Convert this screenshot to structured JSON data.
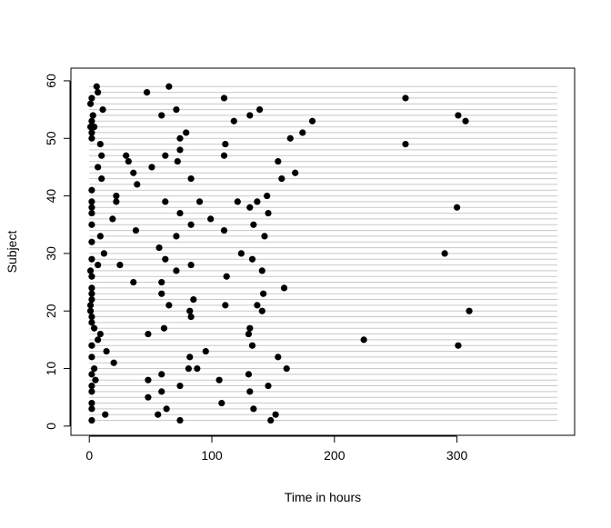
{
  "chart_data": {
    "type": "scatter",
    "title": "",
    "xlabel": "Time in hours",
    "ylabel": "Subject",
    "xlim": [
      -15,
      396
    ],
    "ylim": [
      -1.6,
      62.2
    ],
    "xticks": [
      0,
      100,
      200,
      300
    ],
    "yticks": [
      0,
      10,
      20,
      30,
      40,
      50,
      60
    ],
    "grid_lines": {
      "subjects_from": 1,
      "subjects_to": 59,
      "extent_hours": [
        0,
        382
      ],
      "color": "#c8c8c8"
    },
    "point_color": "#000000",
    "points": [
      [
        6,
        59
      ],
      [
        65,
        59
      ],
      [
        7,
        58
      ],
      [
        47,
        58
      ],
      [
        2,
        57
      ],
      [
        110,
        57
      ],
      [
        258,
        57
      ],
      [
        1,
        56
      ],
      [
        11,
        55
      ],
      [
        71,
        55
      ],
      [
        139,
        55
      ],
      [
        3,
        54
      ],
      [
        59,
        54
      ],
      [
        131,
        54
      ],
      [
        301,
        54
      ],
      [
        2,
        53
      ],
      [
        118,
        53
      ],
      [
        182,
        53
      ],
      [
        307,
        53
      ],
      [
        1,
        52
      ],
      [
        4,
        52
      ],
      [
        2,
        51
      ],
      [
        79,
        51
      ],
      [
        174,
        51
      ],
      [
        2,
        50
      ],
      [
        74,
        50
      ],
      [
        164,
        50
      ],
      [
        9,
        49
      ],
      [
        111,
        49
      ],
      [
        258,
        49
      ],
      [
        74,
        48
      ],
      [
        10,
        47
      ],
      [
        30,
        47
      ],
      [
        62,
        47
      ],
      [
        110,
        47
      ],
      [
        32,
        46
      ],
      [
        72,
        46
      ],
      [
        154,
        46
      ],
      [
        7,
        45
      ],
      [
        51,
        45
      ],
      [
        36,
        44
      ],
      [
        168,
        44
      ],
      [
        10,
        43
      ],
      [
        83,
        43
      ],
      [
        157,
        43
      ],
      [
        39,
        42
      ],
      [
        2,
        41
      ],
      [
        22,
        40
      ],
      [
        145,
        40
      ],
      [
        2,
        39
      ],
      [
        22,
        39
      ],
      [
        62,
        39
      ],
      [
        90,
        39
      ],
      [
        121,
        39
      ],
      [
        137,
        39
      ],
      [
        2,
        38
      ],
      [
        131,
        38
      ],
      [
        300,
        38
      ],
      [
        2,
        37
      ],
      [
        74,
        37
      ],
      [
        146,
        37
      ],
      [
        19,
        36
      ],
      [
        99,
        36
      ],
      [
        2,
        35
      ],
      [
        83,
        35
      ],
      [
        134,
        35
      ],
      [
        38,
        34
      ],
      [
        110,
        34
      ],
      [
        9,
        33
      ],
      [
        71,
        33
      ],
      [
        143,
        33
      ],
      [
        2,
        32
      ],
      [
        57,
        31
      ],
      [
        12,
        30
      ],
      [
        124,
        30
      ],
      [
        290,
        30
      ],
      [
        2,
        29
      ],
      [
        62,
        29
      ],
      [
        133,
        29
      ],
      [
        7,
        28
      ],
      [
        25,
        28
      ],
      [
        83,
        28
      ],
      [
        1,
        27
      ],
      [
        71,
        27
      ],
      [
        141,
        27
      ],
      [
        2,
        26
      ],
      [
        112,
        26
      ],
      [
        36,
        25
      ],
      [
        59,
        25
      ],
      [
        2,
        24
      ],
      [
        159,
        24
      ],
      [
        2,
        23
      ],
      [
        59,
        23
      ],
      [
        142,
        23
      ],
      [
        2,
        22
      ],
      [
        85,
        22
      ],
      [
        1,
        21
      ],
      [
        65,
        21
      ],
      [
        111,
        21
      ],
      [
        137,
        21
      ],
      [
        1,
        20
      ],
      [
        82,
        20
      ],
      [
        141,
        20
      ],
      [
        310,
        20
      ],
      [
        2,
        19
      ],
      [
        83,
        19
      ],
      [
        2,
        18
      ],
      [
        4,
        17
      ],
      [
        61,
        17
      ],
      [
        131,
        17
      ],
      [
        9,
        16
      ],
      [
        48,
        16
      ],
      [
        130,
        16
      ],
      [
        7,
        15
      ],
      [
        224,
        15
      ],
      [
        2,
        14
      ],
      [
        133,
        14
      ],
      [
        301,
        14
      ],
      [
        14,
        13
      ],
      [
        95,
        13
      ],
      [
        2,
        12
      ],
      [
        82,
        12
      ],
      [
        154,
        12
      ],
      [
        20,
        11
      ],
      [
        4,
        10
      ],
      [
        81,
        10
      ],
      [
        88,
        10
      ],
      [
        161,
        10
      ],
      [
        2,
        9
      ],
      [
        59,
        9
      ],
      [
        130,
        9
      ],
      [
        5,
        8
      ],
      [
        48,
        8
      ],
      [
        106,
        8
      ],
      [
        2,
        7
      ],
      [
        74,
        7
      ],
      [
        146,
        7
      ],
      [
        2,
        6
      ],
      [
        59,
        6
      ],
      [
        131,
        6
      ],
      [
        48,
        5
      ],
      [
        2,
        4
      ],
      [
        108,
        4
      ],
      [
        2,
        3
      ],
      [
        63,
        3
      ],
      [
        134,
        3
      ],
      [
        13,
        2
      ],
      [
        56,
        2
      ],
      [
        152,
        2
      ],
      [
        2,
        1
      ],
      [
        74,
        1
      ],
      [
        148,
        1
      ]
    ]
  }
}
